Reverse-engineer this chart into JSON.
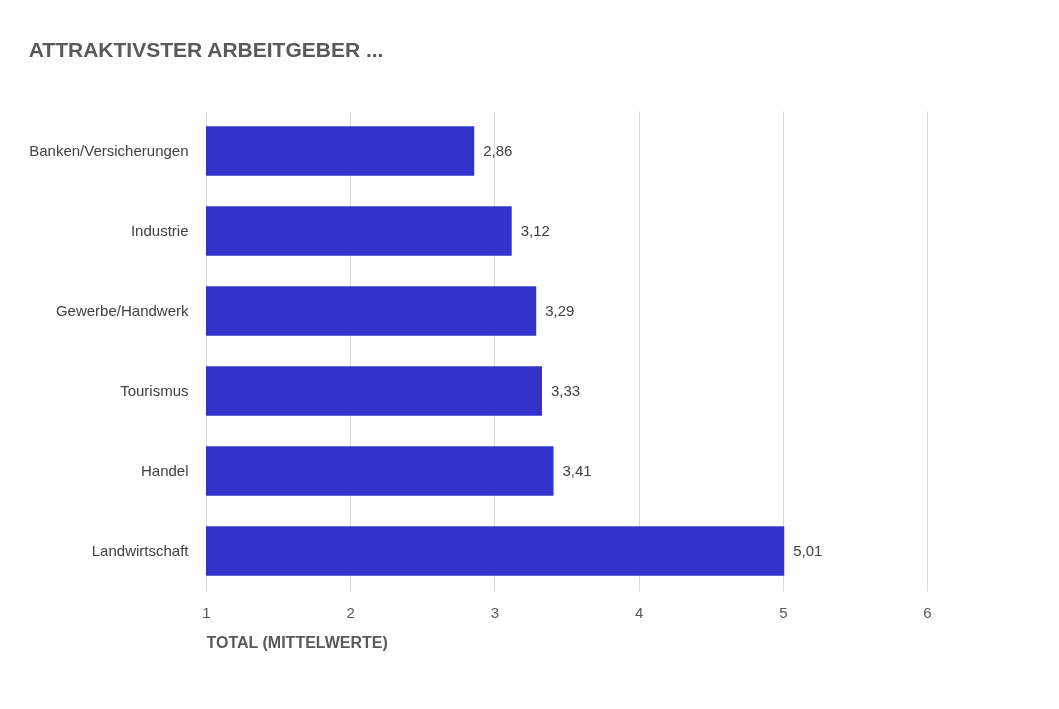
{
  "chart_data": {
    "type": "bar",
    "orientation": "horizontal",
    "title": "ATTRAKTIVSTER ARBEITGEBER ...",
    "xlabel": "TOTAL (MITTELWERTE)",
    "categories": [
      "Banken/Versicherungen",
      "Industrie",
      "Gewerbe/Handwerk",
      "Tourismus",
      "Handel",
      "Landwirtschaft"
    ],
    "values": [
      2.86,
      3.12,
      3.29,
      3.33,
      3.41,
      5.01
    ],
    "value_labels": [
      "2,86",
      "3,12",
      "3,29",
      "3,33",
      "3,41",
      "5,01"
    ],
    "color": "#3333cc",
    "xlim": [
      1,
      6
    ],
    "xticks": [
      1,
      2,
      3,
      4,
      5,
      6
    ],
    "grid": "x"
  }
}
